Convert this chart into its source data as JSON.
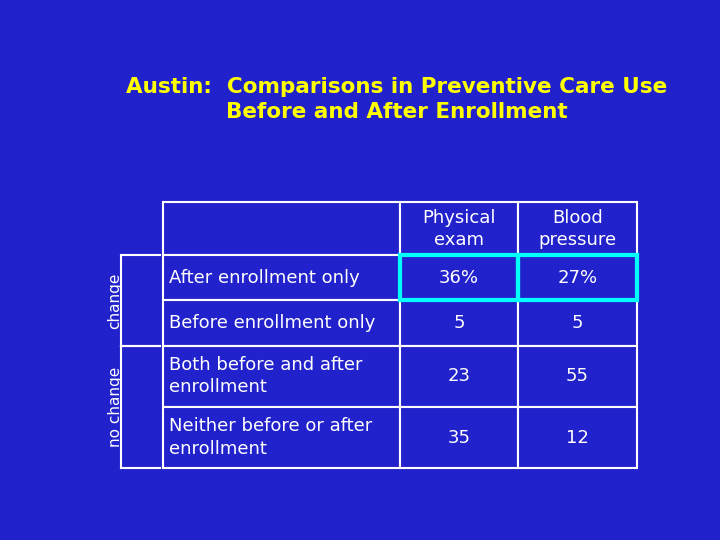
{
  "title_line1": "Austin:  Comparisons in Preventive Care Use",
  "title_line2": "Before and After Enrollment",
  "title_color": "#FFFF00",
  "bg_color": "#2222CC",
  "table_border_color": "#FFFFFF",
  "highlight_border_color": "#00FFFF",
  "text_color": "#FFFFFF",
  "col_headers": [
    "Physical\nexam",
    "Blood\npressure"
  ],
  "rows": [
    [
      "After enrollment only",
      "36%",
      "27%"
    ],
    [
      "Before enrollment only",
      "5",
      "5"
    ],
    [
      "Both before and after\nenrollment",
      "23",
      "55"
    ],
    [
      "Neither before or after\nenrollment",
      "35",
      "12"
    ]
  ]
}
